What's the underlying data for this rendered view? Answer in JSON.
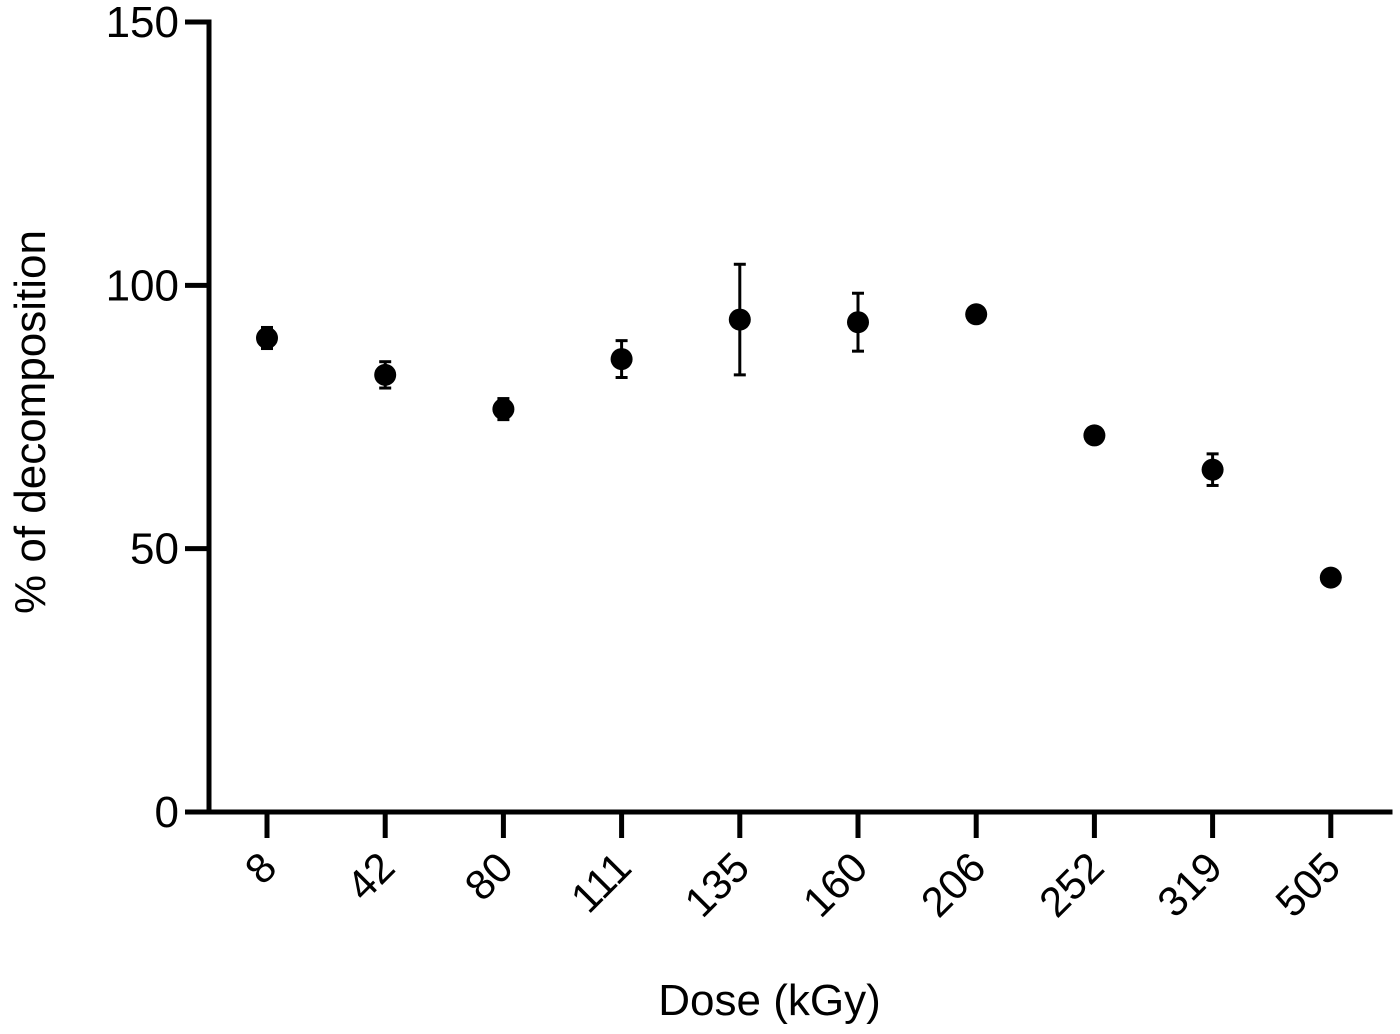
{
  "chart_data": {
    "type": "scatter",
    "title": "",
    "xlabel": "Dose (kGy)",
    "ylabel": "% of decomposition",
    "ylim": [
      0,
      150
    ],
    "yticks": [
      0,
      50,
      100,
      150
    ],
    "categories": [
      "8",
      "42",
      "80",
      "111",
      "135",
      "160",
      "206",
      "252",
      "319",
      "505"
    ],
    "series": [
      {
        "values": [
          90,
          83,
          76.5,
          86,
          93.5,
          93,
          94.5,
          71.5,
          65,
          44.5
        ],
        "error": [
          2,
          2.5,
          2,
          3.5,
          10.5,
          5.5,
          0,
          0,
          3,
          0
        ]
      }
    ],
    "marker_color": "#000000",
    "grid": false,
    "legend": "none"
  }
}
